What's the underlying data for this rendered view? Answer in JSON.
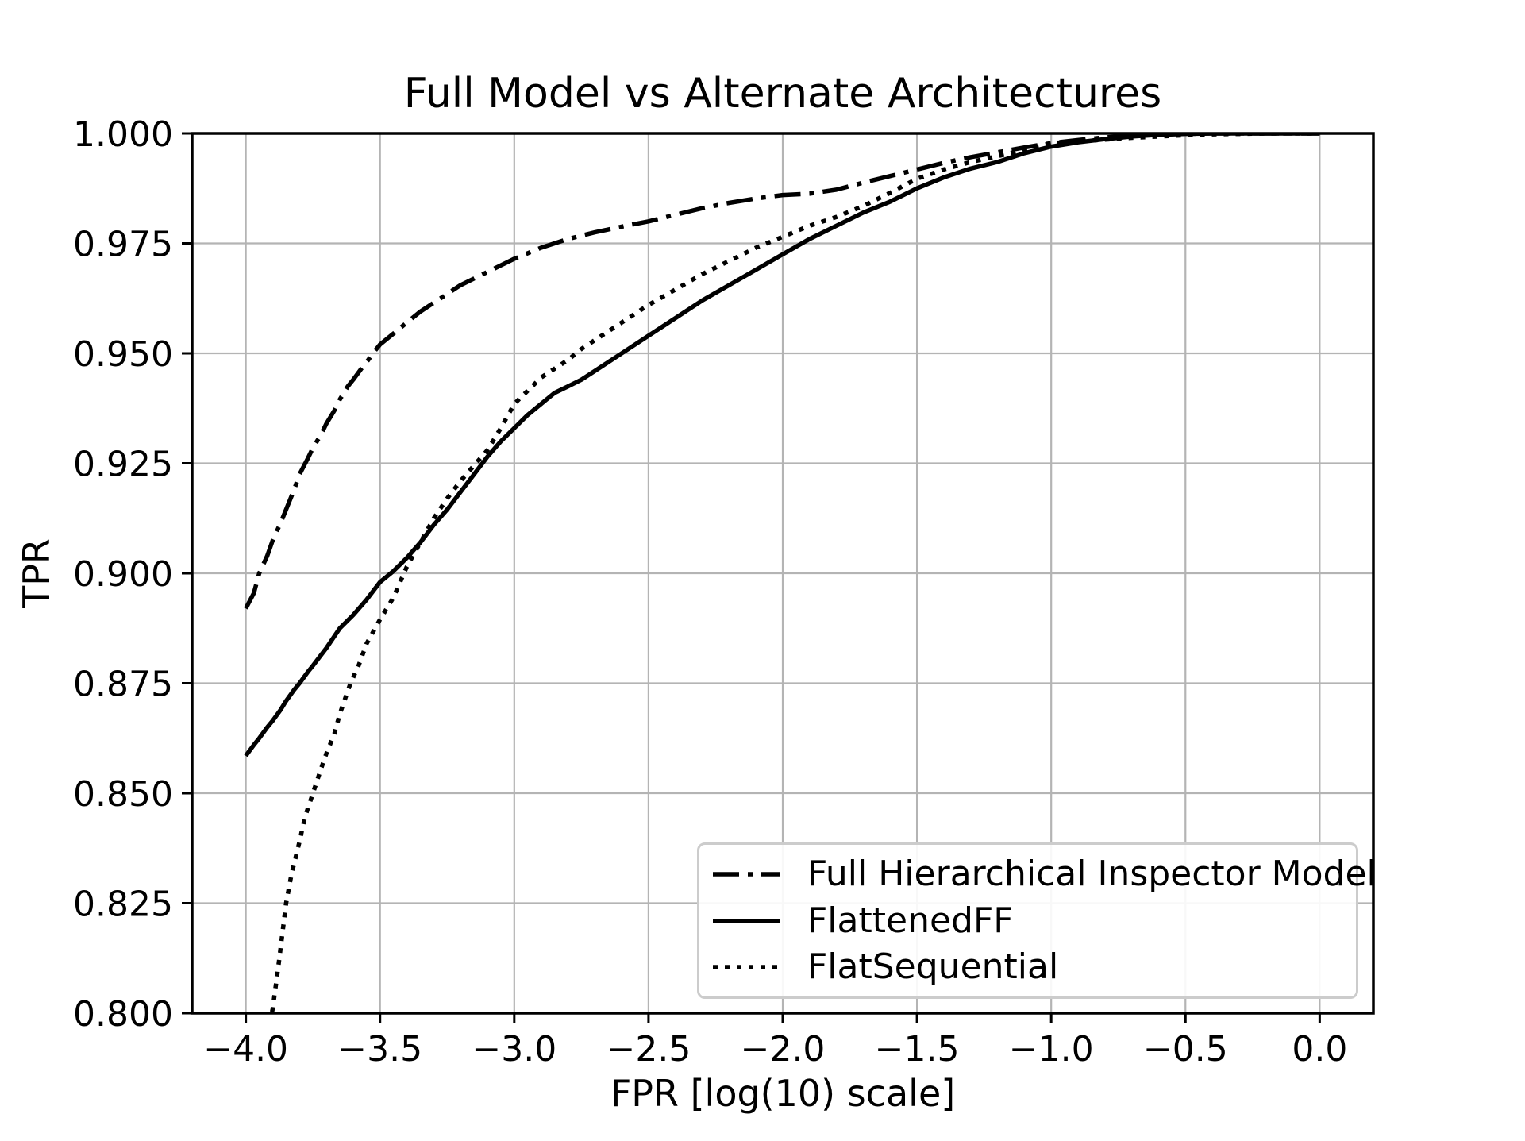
{
  "chart_data": {
    "type": "line",
    "title": "Full Model vs Alternate Architectures",
    "xlabel": "FPR [log(10) scale]",
    "ylabel": "TPR",
    "xlim": [
      -4.2,
      0.2
    ],
    "ylim": [
      0.8,
      1.0
    ],
    "grid": true,
    "grid_color": "#b4b4b4",
    "line_color": "#000000",
    "legend_position": "lower right",
    "xticks": [
      {
        "v": -4.0,
        "label": "−4.0"
      },
      {
        "v": -3.5,
        "label": "−3.5"
      },
      {
        "v": -3.0,
        "label": "−3.0"
      },
      {
        "v": -2.5,
        "label": "−2.5"
      },
      {
        "v": -2.0,
        "label": "−2.0"
      },
      {
        "v": -1.5,
        "label": "−1.5"
      },
      {
        "v": -1.0,
        "label": "−1.0"
      },
      {
        "v": -0.5,
        "label": "−0.5"
      },
      {
        "v": 0.0,
        "label": "0.0"
      }
    ],
    "yticks": [
      {
        "v": 1.0,
        "label": "1.000"
      },
      {
        "v": 0.975,
        "label": "0.975"
      },
      {
        "v": 0.95,
        "label": "0.950"
      },
      {
        "v": 0.925,
        "label": "0.925"
      },
      {
        "v": 0.9,
        "label": "0.900"
      },
      {
        "v": 0.875,
        "label": "0.875"
      },
      {
        "v": 0.85,
        "label": "0.850"
      },
      {
        "v": 0.825,
        "label": "0.825"
      },
      {
        "v": 0.8,
        "label": "0.800"
      }
    ],
    "series": [
      {
        "name": "Full Hierarchical Inspector Model",
        "linestyle": "dashdot",
        "points": [
          [
            -4.0,
            0.892
          ],
          [
            -3.97,
            0.8955
          ],
          [
            -3.95,
            0.9
          ],
          [
            -3.92,
            0.904
          ],
          [
            -3.9,
            0.9075
          ],
          [
            -3.87,
            0.9115
          ],
          [
            -3.85,
            0.9145
          ],
          [
            -3.82,
            0.919
          ],
          [
            -3.8,
            0.9225
          ],
          [
            -3.77,
            0.926
          ],
          [
            -3.75,
            0.9285
          ],
          [
            -3.72,
            0.9315
          ],
          [
            -3.7,
            0.934
          ],
          [
            -3.67,
            0.937
          ],
          [
            -3.65,
            0.9395
          ],
          [
            -3.62,
            0.9425
          ],
          [
            -3.6,
            0.944
          ],
          [
            -3.57,
            0.9465
          ],
          [
            -3.55,
            0.948
          ],
          [
            -3.52,
            0.9505
          ],
          [
            -3.5,
            0.952
          ],
          [
            -3.45,
            0.9545
          ],
          [
            -3.4,
            0.957
          ],
          [
            -3.35,
            0.9595
          ],
          [
            -3.3,
            0.9615
          ],
          [
            -3.25,
            0.9635
          ],
          [
            -3.2,
            0.9655
          ],
          [
            -3.15,
            0.967
          ],
          [
            -3.1,
            0.9685
          ],
          [
            -3.05,
            0.97
          ],
          [
            -3.0,
            0.9715
          ],
          [
            -2.9,
            0.974
          ],
          [
            -2.8,
            0.976
          ],
          [
            -2.7,
            0.9775
          ],
          [
            -2.6,
            0.9788
          ],
          [
            -2.5,
            0.98
          ],
          [
            -2.4,
            0.9815
          ],
          [
            -2.3,
            0.983
          ],
          [
            -2.2,
            0.9842
          ],
          [
            -2.1,
            0.9852
          ],
          [
            -2.0,
            0.986
          ],
          [
            -1.9,
            0.9863
          ],
          [
            -1.8,
            0.9872
          ],
          [
            -1.7,
            0.9888
          ],
          [
            -1.6,
            0.9903
          ],
          [
            -1.5,
            0.9918
          ],
          [
            -1.4,
            0.9933
          ],
          [
            -1.3,
            0.9946
          ],
          [
            -1.2,
            0.9957
          ],
          [
            -1.1,
            0.9968
          ],
          [
            -1.0,
            0.9978
          ],
          [
            -0.9,
            0.9985
          ],
          [
            -0.8,
            0.9991
          ],
          [
            -0.7,
            0.9995
          ],
          [
            -0.6,
            0.9998
          ],
          [
            -0.5,
            0.9999
          ],
          [
            -0.4,
            1.0
          ],
          [
            -0.2,
            1.0
          ],
          [
            0.0,
            1.0
          ]
        ]
      },
      {
        "name": "FlattenedFF",
        "linestyle": "solid",
        "points": [
          [
            -4.0,
            0.8585
          ],
          [
            -3.97,
            0.861
          ],
          [
            -3.95,
            0.8625
          ],
          [
            -3.92,
            0.865
          ],
          [
            -3.9,
            0.8665
          ],
          [
            -3.87,
            0.869
          ],
          [
            -3.85,
            0.871
          ],
          [
            -3.82,
            0.8735
          ],
          [
            -3.8,
            0.875
          ],
          [
            -3.77,
            0.8775
          ],
          [
            -3.75,
            0.879
          ],
          [
            -3.7,
            0.883
          ],
          [
            -3.65,
            0.8875
          ],
          [
            -3.6,
            0.8905
          ],
          [
            -3.55,
            0.894
          ],
          [
            -3.5,
            0.898
          ],
          [
            -3.45,
            0.9005
          ],
          [
            -3.4,
            0.9035
          ],
          [
            -3.35,
            0.907
          ],
          [
            -3.3,
            0.911
          ],
          [
            -3.25,
            0.9145
          ],
          [
            -3.2,
            0.9185
          ],
          [
            -3.15,
            0.9225
          ],
          [
            -3.1,
            0.9265
          ],
          [
            -3.05,
            0.93
          ],
          [
            -3.0,
            0.933
          ],
          [
            -2.95,
            0.936
          ],
          [
            -2.9,
            0.9385
          ],
          [
            -2.85,
            0.941
          ],
          [
            -2.8,
            0.9425
          ],
          [
            -2.75,
            0.944
          ],
          [
            -2.7,
            0.946
          ],
          [
            -2.65,
            0.948
          ],
          [
            -2.6,
            0.95
          ],
          [
            -2.5,
            0.954
          ],
          [
            -2.4,
            0.958
          ],
          [
            -2.3,
            0.962
          ],
          [
            -2.2,
            0.9655
          ],
          [
            -2.1,
            0.969
          ],
          [
            -2.0,
            0.9725
          ],
          [
            -1.9,
            0.976
          ],
          [
            -1.8,
            0.979
          ],
          [
            -1.7,
            0.982
          ],
          [
            -1.6,
            0.9845
          ],
          [
            -1.5,
            0.9875
          ],
          [
            -1.4,
            0.99
          ],
          [
            -1.3,
            0.992
          ],
          [
            -1.2,
            0.9935
          ],
          [
            -1.1,
            0.9955
          ],
          [
            -1.0,
            0.997
          ],
          [
            -0.9,
            0.998
          ],
          [
            -0.8,
            0.9987
          ],
          [
            -0.7,
            0.9993
          ],
          [
            -0.6,
            0.9997
          ],
          [
            -0.5,
            0.9999
          ],
          [
            -0.4,
            1.0
          ],
          [
            -0.2,
            1.0
          ],
          [
            0.0,
            1.0
          ]
        ]
      },
      {
        "name": "FlatSequential",
        "linestyle": "dotted",
        "points": [
          [
            -3.92,
            0.795
          ],
          [
            -3.9,
            0.801
          ],
          [
            -3.88,
            0.81
          ],
          [
            -3.86,
            0.82
          ],
          [
            -3.85,
            0.825
          ],
          [
            -3.83,
            0.8315
          ],
          [
            -3.8,
            0.839
          ],
          [
            -3.78,
            0.8445
          ],
          [
            -3.75,
            0.85
          ],
          [
            -3.72,
            0.8555
          ],
          [
            -3.7,
            0.859
          ],
          [
            -3.67,
            0.8635
          ],
          [
            -3.65,
            0.868
          ],
          [
            -3.61,
            0.875
          ],
          [
            -3.58,
            0.879
          ],
          [
            -3.55,
            0.884
          ],
          [
            -3.5,
            0.8895
          ],
          [
            -3.45,
            0.8945
          ],
          [
            -3.4,
            0.9015
          ],
          [
            -3.35,
            0.907
          ],
          [
            -3.3,
            0.9125
          ],
          [
            -3.25,
            0.917
          ],
          [
            -3.2,
            0.921
          ],
          [
            -3.15,
            0.9245
          ],
          [
            -3.1,
            0.928
          ],
          [
            -3.05,
            0.933
          ],
          [
            -3.0,
            0.9385
          ],
          [
            -2.95,
            0.9415
          ],
          [
            -2.9,
            0.9445
          ],
          [
            -2.85,
            0.9465
          ],
          [
            -2.8,
            0.9485
          ],
          [
            -2.75,
            0.951
          ],
          [
            -2.7,
            0.953
          ],
          [
            -2.65,
            0.955
          ],
          [
            -2.6,
            0.957
          ],
          [
            -2.5,
            0.961
          ],
          [
            -2.4,
            0.9645
          ],
          [
            -2.3,
            0.968
          ],
          [
            -2.2,
            0.971
          ],
          [
            -2.1,
            0.974
          ],
          [
            -2.0,
            0.9765
          ],
          [
            -1.9,
            0.979
          ],
          [
            -1.8,
            0.981
          ],
          [
            -1.7,
            0.9835
          ],
          [
            -1.6,
            0.9865
          ],
          [
            -1.5,
            0.9897
          ],
          [
            -1.4,
            0.9918
          ],
          [
            -1.3,
            0.9935
          ],
          [
            -1.2,
            0.9948
          ],
          [
            -1.1,
            0.9963
          ],
          [
            -1.0,
            0.9978
          ],
          [
            -0.9,
            0.9982
          ],
          [
            -0.8,
            0.9986
          ],
          [
            -0.7,
            0.999
          ],
          [
            -0.6,
            0.9993
          ],
          [
            -0.5,
            0.9996
          ],
          [
            -0.4,
            0.9998
          ],
          [
            -0.3,
            0.9999
          ],
          [
            -0.2,
            1.0
          ],
          [
            0.0,
            1.0
          ]
        ]
      }
    ]
  }
}
